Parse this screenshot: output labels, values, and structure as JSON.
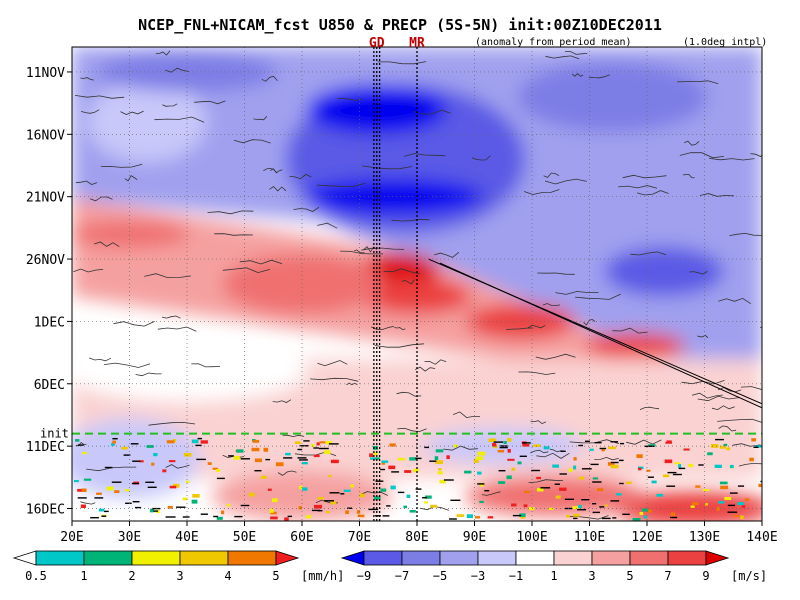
{
  "chart_data": {
    "type": "heatmap",
    "title": "NCEP_FNL+NICAM_fcst U850 & PRECP (5S-5N) init:00Z10DEC2011",
    "subtitle_left": "(anomaly from period mean)",
    "subtitle_right": "(1.0deg intpl)",
    "x_axis": {
      "range": [
        20,
        140
      ],
      "ticks": [
        20,
        30,
        40,
        50,
        60,
        70,
        80,
        90,
        100,
        110,
        120,
        130,
        140
      ],
      "tick_labels": [
        "20E",
        "30E",
        "40E",
        "50E",
        "60E",
        "70E",
        "80E",
        "90E",
        "100E",
        "110E",
        "120E",
        "130E",
        "140E"
      ]
    },
    "y_axis": {
      "range": [
        "2011-11-09",
        "2011-12-17"
      ],
      "ticks": [
        "2011-11-11",
        "2011-11-16",
        "2011-11-21",
        "2011-11-26",
        "2011-12-01",
        "2011-12-06",
        "2011-12-11",
        "2011-12-16"
      ],
      "tick_labels": [
        "11NOV",
        "16NOV",
        "21NOV",
        "26NOV",
        "1DEC",
        "6DEC",
        "11DEC",
        "16DEC"
      ]
    },
    "init_line": {
      "date": "2011-12-10",
      "label": "init",
      "color": "#22c022"
    },
    "reference_lines": [
      {
        "label": "GD",
        "lon": [
          72.5,
          73.5
        ]
      },
      {
        "label": "MR",
        "lon": [
          80
        ]
      }
    ],
    "precip_legend": {
      "unit": "[mm/h]",
      "levels": [
        "0.5",
        "1",
        "2",
        "3",
        "4",
        "5"
      ],
      "colors": [
        "#ffffff",
        "#00c8c8",
        "#00b478",
        "#f0f000",
        "#f0c800",
        "#f07800",
        "#f01e1e"
      ]
    },
    "u850_legend": {
      "unit": "[m/s]",
      "levels": [
        "−9",
        "−7",
        "−5",
        "−3",
        "−1",
        "1",
        "3",
        "5",
        "7",
        "9"
      ],
      "colors": [
        "#0000f0",
        "#5a5ae6",
        "#7d7de6",
        "#a0a0ef",
        "#c8c8fa",
        "#ffffff",
        "#fad2d2",
        "#f5a0a0",
        "#f07070",
        "#eb4141",
        "#dc0000"
      ]
    },
    "grid": true,
    "features": [
      {
        "name": "westerly anomaly band",
        "sign": "positive",
        "start": {
          "lon": 25,
          "date": "2011-11-22"
        },
        "end": {
          "lon": 140,
          "date": "2011-12-08"
        }
      },
      {
        "name": "easterly anomaly",
        "sign": "negative",
        "lon_center": 78,
        "date_range": [
          "2011-11-11",
          "2011-11-25"
        ]
      }
    ]
  }
}
